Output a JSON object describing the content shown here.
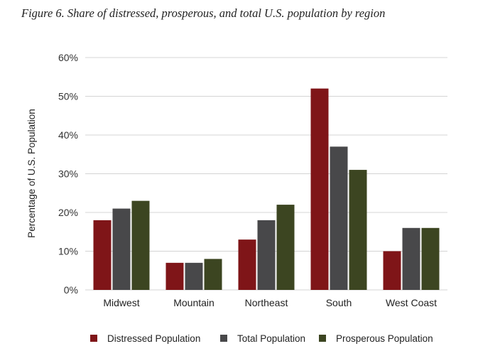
{
  "chart_data": {
    "type": "bar",
    "title": "Figure 6. Share of distressed, prosperous, and total U.S. population by region",
    "xlabel": "",
    "ylabel": "Percentage of U.S. Population",
    "ylim": [
      0,
      60
    ],
    "yticks": [
      0,
      10,
      20,
      30,
      40,
      50,
      60
    ],
    "ytick_labels": [
      "0%",
      "10%",
      "20%",
      "30%",
      "40%",
      "50%",
      "60%"
    ],
    "grid": true,
    "legend_placement": "bottom",
    "categories": [
      "Midwest",
      "Mountain",
      "Northeast",
      "South",
      "West Coast"
    ],
    "series": [
      {
        "name": "Distressed Population",
        "color": "#7f1518",
        "values": [
          18,
          7,
          13,
          52,
          10
        ]
      },
      {
        "name": "Total Population",
        "color": "#48484a",
        "values": [
          21,
          7,
          18,
          37,
          16
        ]
      },
      {
        "name": "Prosperous Population",
        "color": "#3c4521",
        "values": [
          23,
          8,
          22,
          31,
          16
        ]
      }
    ]
  }
}
